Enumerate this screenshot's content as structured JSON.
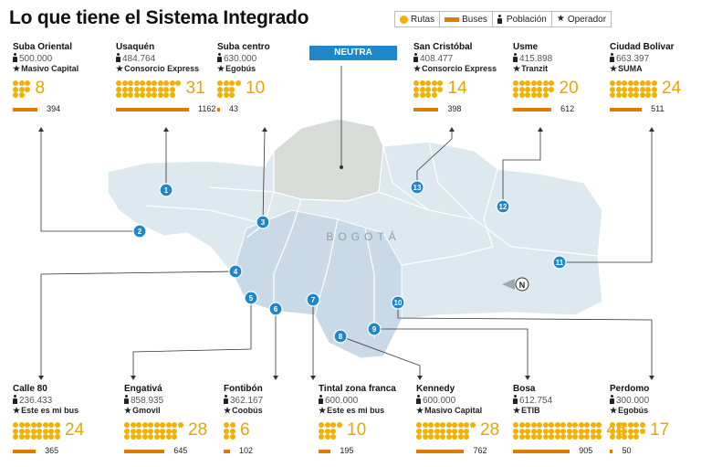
{
  "title": "Lo que tiene el Sistema Integrado",
  "legend": [
    {
      "label": "Rutas",
      "icon": "yellow-dot",
      "color": "#f2b100"
    },
    {
      "label": "Buses",
      "icon": "orange-bar",
      "color": "#e07b00"
    },
    {
      "label": "Población",
      "icon": "person-icon"
    },
    {
      "label": "Operador",
      "icon": "star-icon"
    }
  ],
  "neutra_label": "NEUTRA",
  "city_label": "BOGOTÁ",
  "zones": [
    {
      "name": "Suba Oriental",
      "population": "500.000",
      "operator": "Masivo Capital",
      "routes": 8,
      "buses": 394
    },
    {
      "name": "Usaquén",
      "population": "484.764",
      "operator": "Consorcio Express",
      "routes": 31,
      "buses": 1162
    },
    {
      "name": "Suba centro",
      "population": "630.000",
      "operator": "Egobús",
      "routes": 10,
      "buses": 43
    },
    {
      "name": "San Cristóbal",
      "population": "408.477",
      "operator": "Consorcio Express",
      "routes": 14,
      "buses": 398
    },
    {
      "name": "Usme",
      "population": "415.898",
      "operator": "Tranzit",
      "routes": 20,
      "buses": 612
    },
    {
      "name": "Ciudad Bolívar",
      "population": "663.397",
      "operator": "SUMA",
      "routes": 24,
      "buses": 511
    },
    {
      "name": "Calle 80",
      "population": "236.433",
      "operator": "Este es mi bus",
      "routes": 24,
      "buses": 365
    },
    {
      "name": "Engativá",
      "population": "858.935",
      "operator": "Gmovil",
      "routes": 28,
      "buses": 645
    },
    {
      "name": "Fontibón",
      "population": "362.167",
      "operator": "Coobús",
      "routes": 6,
      "buses": 102
    },
    {
      "name": "Tintal zona franca",
      "population": "600.000",
      "operator": "Este es mi bus",
      "routes": 10,
      "buses": 195
    },
    {
      "name": "Kennedy",
      "population": "600.000",
      "operator": "Masivo Capital",
      "routes": 28,
      "buses": 762
    },
    {
      "name": "Bosa",
      "population": "612.754",
      "operator": "ETIB",
      "routes": 45,
      "buses": 905
    },
    {
      "name": "Perdomo",
      "population": "300.000",
      "operator": "Egobús",
      "routes": 17,
      "buses": 50
    }
  ],
  "markers": [
    "1",
    "2",
    "3",
    "4",
    "5",
    "6",
    "7",
    "8",
    "9",
    "10",
    "11",
    "12",
    "13"
  ],
  "north_label": "N",
  "colors": {
    "routes": "#f2b100",
    "buses": "#e07b00",
    "marker": "#1f86c8",
    "map_fill": "#dde8ef",
    "map_neutral": "#d8dcd8"
  }
}
